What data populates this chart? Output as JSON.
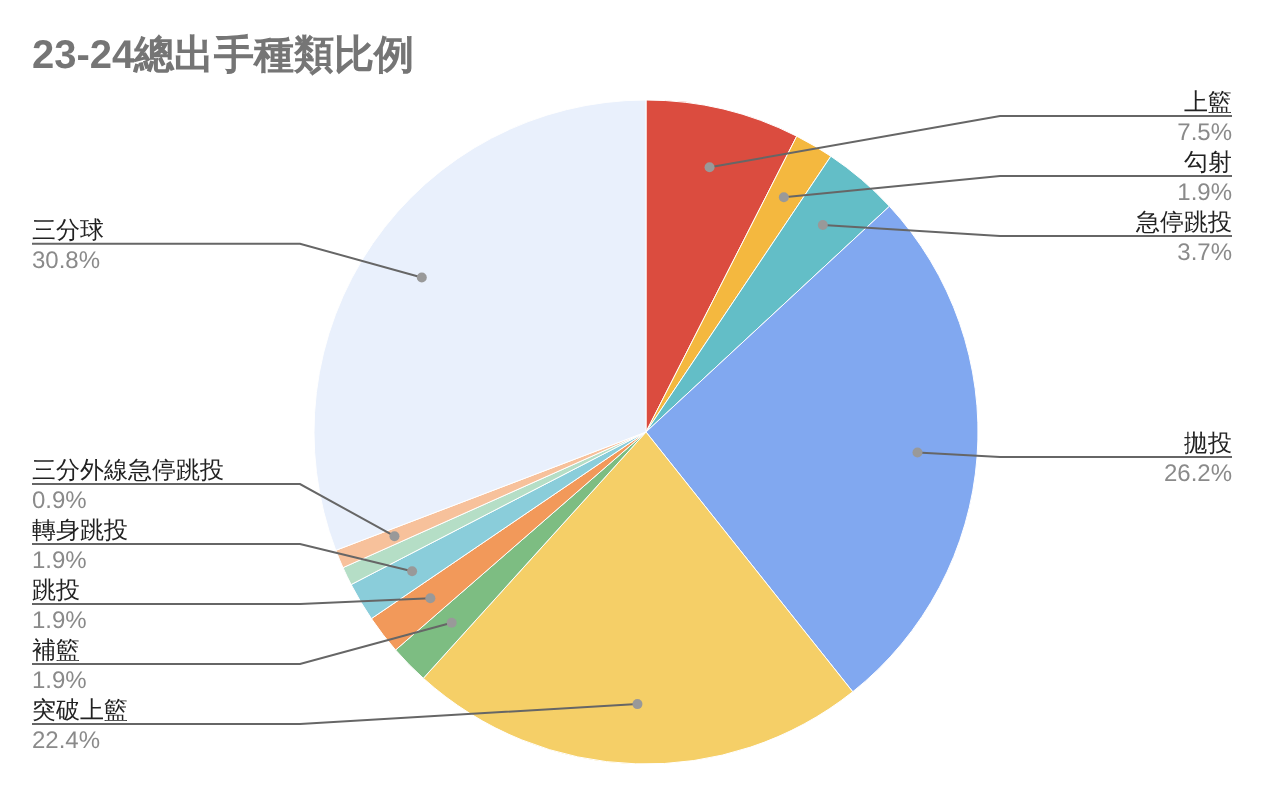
{
  "chart_data": {
    "type": "pie",
    "title": "23-24總出手種類比例",
    "categories": [
      "上籃",
      "勾射",
      "急停跳投",
      "拋投",
      "突破上籃",
      "補籃",
      "跳投",
      "轉身跳投",
      null,
      "三分外線急停跳投",
      "三分球"
    ],
    "values": [
      7.5,
      1.9,
      3.7,
      26.2,
      22.4,
      1.9,
      1.9,
      1.9,
      0.9,
      0.9,
      30.8
    ],
    "colors": [
      "#db4c3f",
      "#f4b83f",
      "#63bec7",
      "#81a8f0",
      "#f5cf67",
      "#7dbd82",
      "#f2995a",
      "#8acdda",
      "#b5dec6",
      "#f7c19b",
      "#e9f0fc"
    ],
    "value_labels": [
      "7.5%",
      "1.9%",
      "3.7%",
      "26.2%",
      "22.4%",
      "1.9%",
      "1.9%",
      "1.9%",
      null,
      "0.9%",
      "30.8%"
    ]
  }
}
